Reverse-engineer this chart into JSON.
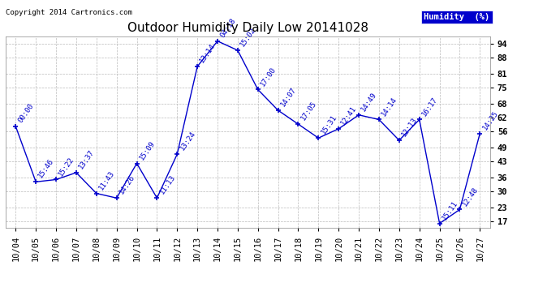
{
  "title": "Outdoor Humidity Daily Low 20141028",
  "copyright": "Copyright 2014 Cartronics.com",
  "legend_label": "Humidity  (%)",
  "x_labels": [
    "10/04",
    "10/05",
    "10/06",
    "10/07",
    "10/08",
    "10/09",
    "10/10",
    "10/11",
    "10/12",
    "10/13",
    "10/14",
    "10/15",
    "10/16",
    "10/17",
    "10/18",
    "10/19",
    "10/20",
    "10/21",
    "10/22",
    "10/23",
    "10/24",
    "10/25",
    "10/26",
    "10/27"
  ],
  "y_values": [
    58,
    34,
    35,
    38,
    29,
    27,
    42,
    27,
    46,
    84,
    95,
    91,
    74,
    65,
    59,
    53,
    57,
    63,
    61,
    52,
    61,
    16,
    22,
    55
  ],
  "time_labels": [
    "00:00",
    "15:46",
    "15:22",
    "13:37",
    "11:43",
    "14:26",
    "15:09",
    "11:13",
    "13:24",
    "13:14",
    "04:18",
    "15:02",
    "17:00",
    "14:07",
    "17:05",
    "15:31",
    "12:41",
    "14:49",
    "14:14",
    "12:13",
    "16:17",
    "15:11",
    "12:48",
    "14:25"
  ],
  "y_ticks": [
    17,
    23,
    30,
    36,
    43,
    49,
    56,
    62,
    68,
    75,
    81,
    88,
    94
  ],
  "ylim": [
    14,
    97
  ],
  "line_color": "#0000cc",
  "marker_color": "#0000cc",
  "bg_color": "#ffffff",
  "grid_color": "#bbbbbb",
  "title_color": "#000000",
  "legend_bg": "#0000cc",
  "legend_text_color": "#ffffff",
  "copyright_color": "#000000",
  "title_fontsize": 11,
  "label_fontsize": 6.5,
  "tick_fontsize": 7.5,
  "copyright_fontsize": 6.5
}
